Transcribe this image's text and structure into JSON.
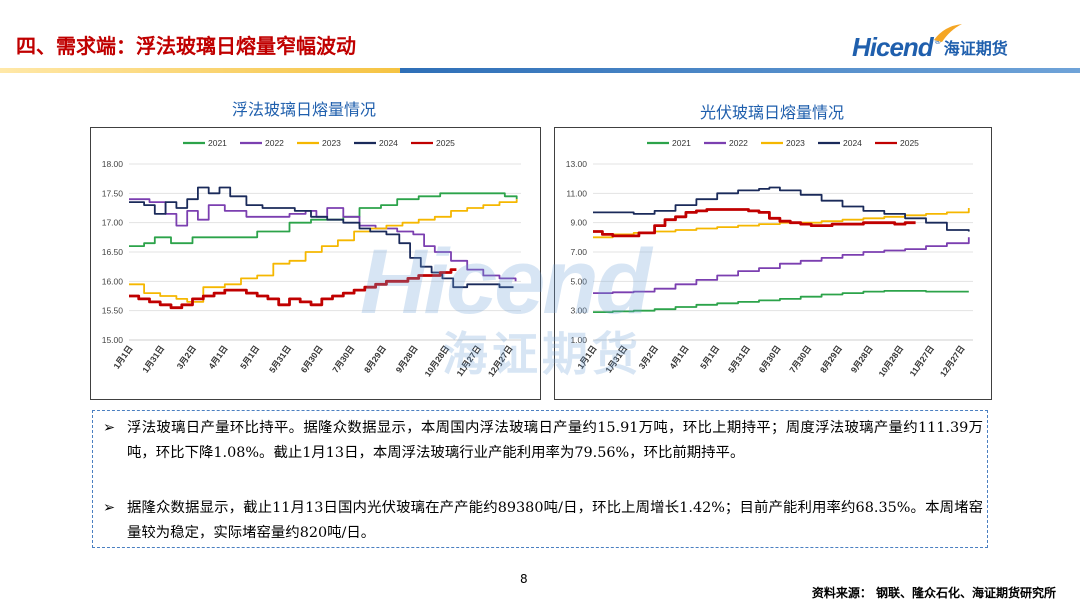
{
  "slide": {
    "title": "四、需求端：浮法玻璃日熔量窄幅波动",
    "page_number": "8",
    "source": "资料来源： 钢联、隆众石化、海证期货研究所",
    "logo_en": "Hicend",
    "logo_reg": "®",
    "logo_cn": "海证期货",
    "watermark_en": "Hicend",
    "watermark_cn": "海证期货",
    "colors": {
      "title": "#c00000",
      "brand": "#1f5fad",
      "band_yellow": "#f5c342",
      "band_blue": "#2e6fb7"
    }
  },
  "text": {
    "bullet_mark": "➢",
    "bullets": [
      "浮法玻璃日产量环比持平。据隆众数据显示，本周国内浮法玻璃日产量约15.91万吨，环比上期持平；周度浮法玻璃产量约111.39万吨，环比下降1.08%。截止1月13日，本周浮法玻璃行业产能利用率为79.56%，环比前期持平。",
      "据隆众数据显示，截止11月13日国内光伏玻璃在产产能约89380吨/日，环比上周增长1.42%；目前产能利用率约68.35%。本周堵窑量较为稳定，实际堵窑量约820吨/日。"
    ]
  },
  "chart_data": [
    {
      "type": "line",
      "title": "浮法玻璃日熔量情况",
      "legend_position": "top",
      "x_tick_labels": [
        "1月1日",
        "1月31日",
        "3月2日",
        "4月1日",
        "5月1日",
        "5月31日",
        "6月30日",
        "7月30日",
        "8月29日",
        "9月28日",
        "10月28日",
        "11月27日",
        "12月27日"
      ],
      "y_tick_labels": [
        "15.00",
        "15.50",
        "16.00",
        "16.50",
        "17.00",
        "17.50",
        "18.00"
      ],
      "ylim": [
        15,
        18
      ],
      "x_unit": "day_of_year",
      "xlim": [
        1,
        365
      ],
      "series": [
        {
          "name": "2021",
          "color": "#2ca34a",
          "x": [
            1,
            15,
            25,
            40,
            60,
            90,
            120,
            150,
            170,
            200,
            215,
            235,
            250,
            270,
            290,
            310,
            330,
            350,
            361
          ],
          "y": [
            16.6,
            16.65,
            16.75,
            16.65,
            16.75,
            16.75,
            16.85,
            17,
            17.05,
            17.1,
            17.25,
            17.3,
            17.4,
            17.45,
            17.5,
            17.5,
            17.5,
            17.45,
            17.4
          ]
        },
        {
          "name": "2022",
          "color": "#7b3fb0",
          "x": [
            1,
            20,
            35,
            45,
            55,
            65,
            75,
            90,
            110,
            130,
            150,
            165,
            175,
            185,
            200,
            215,
            230,
            250,
            265,
            275,
            285,
            300,
            315,
            330,
            345,
            360
          ],
          "y": [
            17.4,
            17.35,
            17.15,
            16.95,
            17.2,
            17.05,
            17.3,
            17.2,
            17.1,
            17.1,
            17.15,
            17.2,
            17.1,
            17.25,
            17.1,
            16.95,
            16.9,
            16.85,
            16.8,
            16.6,
            16.5,
            16.35,
            16.2,
            16.1,
            16.05,
            16.0
          ]
        },
        {
          "name": "2023",
          "color": "#f5b700",
          "x": [
            1,
            15,
            30,
            45,
            55,
            70,
            90,
            105,
            120,
            135,
            150,
            165,
            180,
            195,
            210,
            225,
            240,
            255,
            270,
            285,
            300,
            315,
            330,
            345,
            361
          ],
          "y": [
            15.95,
            15.8,
            15.75,
            15.7,
            15.65,
            15.9,
            15.95,
            16.05,
            16.1,
            16.3,
            16.35,
            16.5,
            16.6,
            16.7,
            16.85,
            16.9,
            16.95,
            17.0,
            17.05,
            17.1,
            17.2,
            17.25,
            17.3,
            17.35,
            17.4
          ]
        },
        {
          "name": "2024",
          "color": "#1a2a5a",
          "x": [
            1,
            15,
            25,
            35,
            45,
            55,
            65,
            75,
            85,
            95,
            110,
            125,
            140,
            155,
            170,
            185,
            200,
            215,
            225,
            240,
            252,
            262,
            272,
            282,
            292,
            302,
            315,
            330,
            345,
            358
          ],
          "y": [
            17.35,
            17.3,
            17.15,
            17.35,
            17.25,
            17.4,
            17.6,
            17.5,
            17.6,
            17.45,
            17.3,
            17.25,
            17.25,
            17.2,
            17.1,
            17.05,
            17.0,
            16.9,
            16.85,
            16.8,
            16.65,
            16.4,
            16.25,
            16.15,
            16.05,
            15.9,
            15.95,
            15.95,
            15.9,
            15.9
          ]
        },
        {
          "name": "2025",
          "color": "#c00000",
          "x": [
            1,
            10,
            20,
            30,
            40,
            50,
            60,
            70,
            80,
            90,
            100,
            110,
            120,
            130,
            140,
            150,
            160,
            170,
            180,
            190,
            200,
            210,
            220,
            230,
            240,
            250,
            260,
            270,
            280,
            290,
            300,
            305
          ],
          "y": [
            15.75,
            15.7,
            15.65,
            15.6,
            15.55,
            15.6,
            15.7,
            15.75,
            15.8,
            15.85,
            15.85,
            15.8,
            15.75,
            15.7,
            15.6,
            15.7,
            15.65,
            15.6,
            15.7,
            15.75,
            15.8,
            15.85,
            15.9,
            15.95,
            16.0,
            16.0,
            16.05,
            16.1,
            16.1,
            16.15,
            16.2,
            16.2
          ]
        }
      ]
    },
    {
      "type": "line",
      "title": "光伏玻璃日熔量情况",
      "legend_position": "top",
      "x_tick_labels": [
        "1月1日",
        "1月31日",
        "3月2日",
        "4月1日",
        "5月1日",
        "5月31日",
        "6月30日",
        "7月30日",
        "8月29日",
        "9月28日",
        "10月28日",
        "11月27日",
        "12月27日"
      ],
      "y_tick_labels": [
        "1.00",
        "3.00",
        "5.00",
        "7.00",
        "9.00",
        "11.00",
        "13.00"
      ],
      "ylim": [
        1,
        13
      ],
      "x_unit": "day_of_year",
      "xlim": [
        1,
        365
      ],
      "series": [
        {
          "name": "2021",
          "color": "#2ca34a",
          "x": [
            1,
            20,
            40,
            60,
            80,
            100,
            120,
            140,
            160,
            180,
            200,
            220,
            240,
            260,
            280,
            300,
            320,
            340,
            361
          ],
          "y": [
            2.9,
            2.95,
            3.0,
            3.1,
            3.25,
            3.4,
            3.5,
            3.6,
            3.7,
            3.8,
            3.95,
            4.1,
            4.2,
            4.3,
            4.35,
            4.35,
            4.3,
            4.3,
            4.3
          ]
        },
        {
          "name": "2022",
          "color": "#7b3fb0",
          "x": [
            1,
            20,
            40,
            60,
            80,
            100,
            120,
            140,
            160,
            180,
            200,
            220,
            240,
            260,
            280,
            300,
            320,
            340,
            361
          ],
          "y": [
            4.2,
            4.25,
            4.3,
            4.5,
            4.8,
            5.1,
            5.4,
            5.7,
            5.9,
            6.2,
            6.4,
            6.6,
            6.8,
            7.0,
            7.1,
            7.2,
            7.4,
            7.6,
            8.0
          ]
        },
        {
          "name": "2023",
          "color": "#f5b700",
          "x": [
            1,
            20,
            40,
            60,
            80,
            100,
            120,
            140,
            160,
            180,
            200,
            220,
            240,
            260,
            280,
            300,
            320,
            340,
            361
          ],
          "y": [
            8.0,
            8.2,
            8.3,
            8.4,
            8.5,
            8.6,
            8.7,
            8.8,
            8.9,
            9.0,
            9.0,
            9.1,
            9.2,
            9.3,
            9.4,
            9.5,
            9.6,
            9.7,
            10.0
          ]
        },
        {
          "name": "2024",
          "color": "#1a2a5a",
          "x": [
            1,
            20,
            40,
            60,
            80,
            100,
            120,
            140,
            160,
            170,
            180,
            200,
            220,
            240,
            260,
            280,
            300,
            320,
            340,
            361
          ],
          "y": [
            9.7,
            9.7,
            9.6,
            9.8,
            10.2,
            10.6,
            11.0,
            11.2,
            11.3,
            11.4,
            11.2,
            10.9,
            10.5,
            10.1,
            9.8,
            9.6,
            9.3,
            9.0,
            8.5,
            8.4
          ]
        },
        {
          "name": "2025",
          "color": "#c00000",
          "x": [
            1,
            10,
            20,
            30,
            45,
            60,
            70,
            80,
            90,
            100,
            110,
            120,
            130,
            140,
            150,
            160,
            170,
            180,
            190,
            200,
            210,
            220,
            230,
            240,
            250,
            260,
            270,
            280,
            290,
            300,
            310
          ],
          "y": [
            8.4,
            8.2,
            8.1,
            8.1,
            8.3,
            8.8,
            9.2,
            9.4,
            9.7,
            9.8,
            9.9,
            9.9,
            9.9,
            9.9,
            9.8,
            9.7,
            9.3,
            9.1,
            9.0,
            8.9,
            8.8,
            8.8,
            8.9,
            8.9,
            8.9,
            9.0,
            9.0,
            9.0,
            8.9,
            9.0,
            9.0
          ]
        }
      ]
    }
  ]
}
